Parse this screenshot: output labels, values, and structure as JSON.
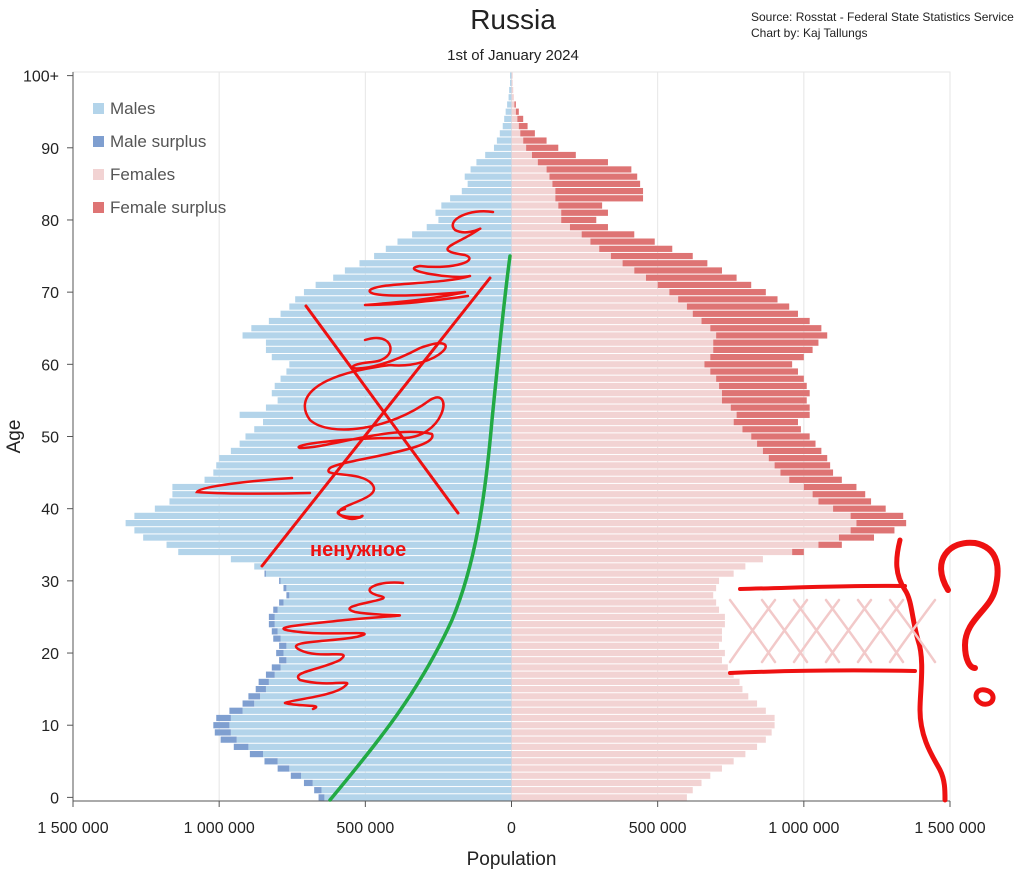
{
  "header": {
    "title": "Russia",
    "subtitle": "1st of January 2024",
    "source": "Source: Rosstat - Federal State Statistics Service",
    "author": "Chart by: Kaj Tallungs"
  },
  "annotations": {
    "text": "ненужное",
    "question_mark": "?"
  },
  "colors": {
    "males": "#b3d4ea",
    "male_surplus": "#7f9fd0",
    "females": "#f2d3d3",
    "female_surplus": "#de7474",
    "scribble": "#ee1111",
    "curve": "#22aa44"
  },
  "chart_data": {
    "type": "bar",
    "orientation": "horizontal",
    "xlabel": "Population",
    "ylabel": "Age",
    "xlim": [
      -1500000,
      1500000
    ],
    "x_ticks": [
      -1500000,
      -1000000,
      -500000,
      0,
      500000,
      1000000,
      1500000
    ],
    "x_tick_labels": [
      "1 500 000",
      "1 000 000",
      "500 000",
      "0",
      "500 000",
      "1 000 000",
      "1 500 000"
    ],
    "y_ticks": [
      0,
      10,
      20,
      30,
      40,
      50,
      60,
      70,
      80,
      90,
      100
    ],
    "y_tick_labels": [
      "0",
      "10",
      "20",
      "30",
      "40",
      "50",
      "60",
      "70",
      "80",
      "90",
      "100+"
    ],
    "legend": [
      "Males",
      "Male surplus",
      "Females",
      "Female surplus"
    ],
    "legend_position": "top-left",
    "ages": [
      0,
      1,
      2,
      3,
      4,
      5,
      6,
      7,
      8,
      9,
      10,
      11,
      12,
      13,
      14,
      15,
      16,
      17,
      18,
      19,
      20,
      21,
      22,
      23,
      24,
      25,
      26,
      27,
      28,
      29,
      30,
      31,
      32,
      33,
      34,
      35,
      36,
      37,
      38,
      39,
      40,
      41,
      42,
      43,
      44,
      45,
      46,
      47,
      48,
      49,
      50,
      51,
      52,
      53,
      54,
      55,
      56,
      57,
      58,
      59,
      60,
      61,
      62,
      63,
      64,
      65,
      66,
      67,
      68,
      69,
      70,
      71,
      72,
      73,
      74,
      75,
      76,
      77,
      78,
      79,
      80,
      81,
      82,
      83,
      84,
      85,
      86,
      87,
      88,
      89,
      90,
      91,
      92,
      93,
      94,
      95,
      96,
      97,
      98,
      99,
      100
    ],
    "males": [
      640000,
      650000,
      680000,
      720000,
      760000,
      800000,
      850000,
      900000,
      940000,
      960000,
      965000,
      960000,
      920000,
      880000,
      860000,
      840000,
      830000,
      810000,
      790000,
      770000,
      780000,
      770000,
      790000,
      800000,
      810000,
      810000,
      800000,
      780000,
      760000,
      770000,
      790000,
      840000,
      880000,
      960000,
      1140000,
      1180000,
      1260000,
      1290000,
      1320000,
      1290000,
      1220000,
      1170000,
      1160000,
      1160000,
      1050000,
      1020000,
      1010000,
      1000000,
      960000,
      930000,
      910000,
      880000,
      850000,
      930000,
      840000,
      800000,
      820000,
      810000,
      790000,
      770000,
      760000,
      820000,
      840000,
      840000,
      920000,
      890000,
      830000,
      790000,
      760000,
      740000,
      710000,
      670000,
      610000,
      570000,
      520000,
      470000,
      430000,
      390000,
      340000,
      290000,
      250000,
      260000,
      240000,
      210000,
      170000,
      150000,
      160000,
      140000,
      120000,
      90000,
      60000,
      50000,
      40000,
      30000,
      25000,
      20000,
      15000,
      10000,
      8000,
      5000,
      5000
    ],
    "male_surplus": [
      20000,
      25000,
      30000,
      35000,
      40000,
      45000,
      45000,
      50000,
      55000,
      55000,
      55000,
      50000,
      45000,
      40000,
      40000,
      35000,
      35000,
      30000,
      30000,
      25000,
      25000,
      25000,
      25000,
      20000,
      20000,
      20000,
      15000,
      15000,
      10000,
      10000,
      5000,
      5000,
      0,
      0,
      0,
      0,
      0,
      0,
      0,
      0,
      0,
      0,
      0,
      0,
      0,
      0,
      0,
      0,
      0,
      0,
      0,
      0,
      0,
      0,
      0,
      0,
      0,
      0,
      0,
      0,
      0,
      0,
      0,
      0,
      0,
      0,
      0,
      0,
      0,
      0,
      0,
      0,
      0,
      0,
      0,
      0,
      0,
      0,
      0,
      0,
      0,
      0,
      0,
      0,
      0,
      0,
      0,
      0,
      0,
      0,
      0,
      0,
      0,
      0,
      0,
      0,
      0,
      0,
      0,
      0,
      0
    ],
    "females": [
      600000,
      620000,
      650000,
      680000,
      720000,
      760000,
      800000,
      840000,
      870000,
      890000,
      900000,
      900000,
      870000,
      840000,
      810000,
      790000,
      780000,
      760000,
      740000,
      720000,
      730000,
      710000,
      720000,
      720000,
      730000,
      730000,
      710000,
      700000,
      690000,
      700000,
      710000,
      760000,
      800000,
      860000,
      960000,
      1050000,
      1120000,
      1160000,
      1180000,
      1160000,
      1100000,
      1050000,
      1030000,
      1000000,
      950000,
      920000,
      900000,
      880000,
      860000,
      840000,
      820000,
      790000,
      760000,
      770000,
      750000,
      720000,
      720000,
      710000,
      700000,
      680000,
      660000,
      680000,
      690000,
      690000,
      700000,
      680000,
      650000,
      620000,
      600000,
      570000,
      540000,
      500000,
      460000,
      420000,
      380000,
      340000,
      300000,
      270000,
      240000,
      200000,
      170000,
      170000,
      160000,
      150000,
      150000,
      140000,
      130000,
      120000,
      90000,
      70000,
      50000,
      40000,
      30000,
      25000,
      20000,
      15000,
      10000,
      8000,
      6000,
      4000,
      4000
    ],
    "female_surplus": [
      0,
      0,
      0,
      0,
      0,
      0,
      0,
      0,
      0,
      0,
      0,
      0,
      0,
      0,
      0,
      0,
      0,
      0,
      0,
      0,
      0,
      0,
      0,
      0,
      0,
      0,
      0,
      0,
      0,
      0,
      0,
      0,
      0,
      0,
      40000,
      80000,
      120000,
      150000,
      170000,
      180000,
      180000,
      180000,
      180000,
      180000,
      180000,
      180000,
      190000,
      200000,
      200000,
      200000,
      200000,
      200000,
      220000,
      250000,
      270000,
      290000,
      300000,
      300000,
      300000,
      300000,
      300000,
      320000,
      340000,
      360000,
      380000,
      380000,
      370000,
      360000,
      350000,
      340000,
      330000,
      320000,
      310000,
      300000,
      290000,
      280000,
      250000,
      220000,
      180000,
      130000,
      120000,
      160000,
      150000,
      300000,
      300000,
      300000,
      300000,
      290000,
      240000,
      150000,
      110000,
      80000,
      50000,
      30000,
      20000,
      10000,
      5000,
      0,
      0,
      0,
      0
    ]
  }
}
